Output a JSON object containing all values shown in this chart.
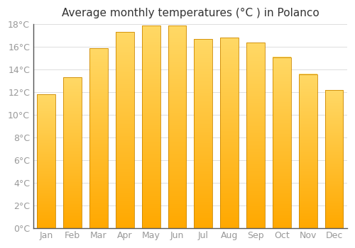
{
  "title": "Average monthly temperatures (°C ) in Polanco",
  "months": [
    "Jan",
    "Feb",
    "Mar",
    "Apr",
    "May",
    "Jun",
    "Jul",
    "Aug",
    "Sep",
    "Oct",
    "Nov",
    "Dec"
  ],
  "values": [
    11.8,
    13.3,
    15.9,
    17.3,
    17.9,
    17.9,
    16.7,
    16.8,
    16.4,
    15.1,
    13.6,
    12.2
  ],
  "bar_color": "#FFA800",
  "bar_color_light": "#FFD966",
  "bar_edge_color": "#CC8800",
  "background_color": "#FFFFFF",
  "grid_color": "#DDDDDD",
  "ylim": [
    0,
    18
  ],
  "yticks": [
    0,
    2,
    4,
    6,
    8,
    10,
    12,
    14,
    16,
    18
  ],
  "title_fontsize": 11,
  "tick_fontsize": 9,
  "tick_color": "#999999",
  "title_color": "#333333",
  "bar_width": 0.7
}
